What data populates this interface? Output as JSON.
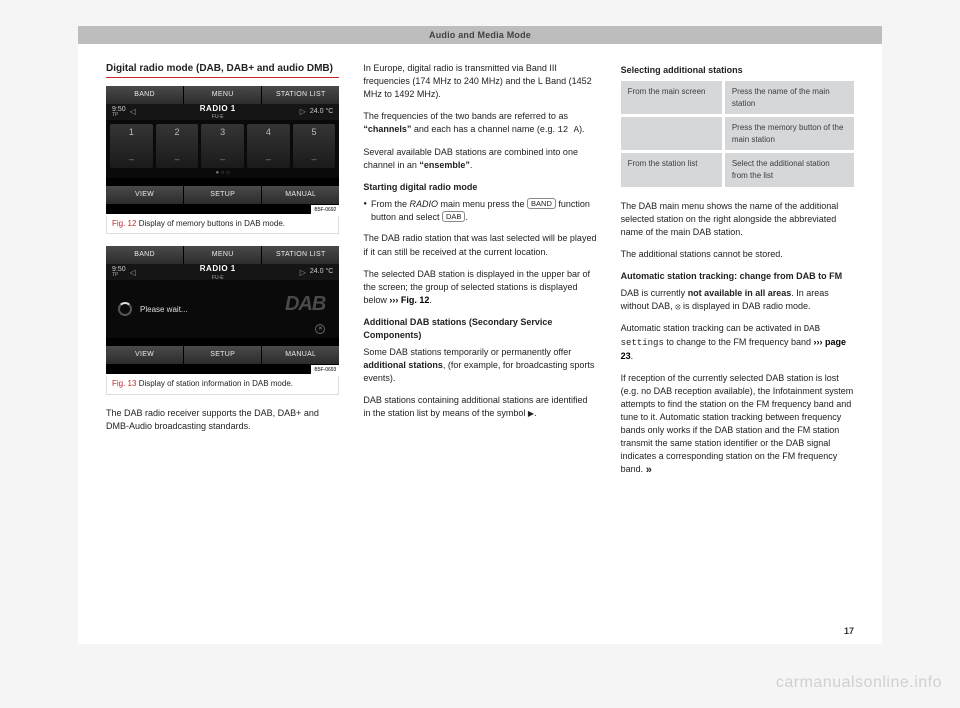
{
  "header": {
    "title": "Audio and Media Mode"
  },
  "col1": {
    "section_title": "Digital radio mode (DAB, DAB+ and audio DMB)",
    "fig12": {
      "top_tabs": [
        "BAND",
        "MENU",
        "STATION LIST"
      ],
      "time": "9:50",
      "tp": "TP",
      "station_main": "RADIO 1",
      "station_sub": "FU-E",
      "temp": "24.0 °C",
      "presets": [
        "1",
        "2",
        "3",
        "4",
        "5"
      ],
      "dots": "● ○ ○",
      "bot_tabs": [
        "VIEW",
        "SETUP",
        "MANUAL"
      ],
      "code": "B5F-0692",
      "caption_fig": "Fig. 12",
      "caption_text": "Display of memory buttons in DAB mode."
    },
    "fig13": {
      "top_tabs": [
        "BAND",
        "MENU",
        "STATION LIST"
      ],
      "time": "9:50",
      "tp": "TP",
      "station_main": "RADIO 1",
      "station_sub": "FU-E",
      "temp": "24.0 °C",
      "loading": "Please wait...",
      "dab": "DAB",
      "bot_tabs": [
        "VIEW",
        "SETUP",
        "MANUAL"
      ],
      "code": "B5F-0693",
      "caption_fig": "Fig. 13",
      "caption_text": "Display of station information in DAB mode."
    },
    "p_bottom": "The DAB radio receiver supports the DAB, DAB+ and DMB-Audio broadcasting standards."
  },
  "col2": {
    "p1": "In Europe, digital radio is transmitted via Band III frequencies (174 MHz to 240 MHz) and the L Band (1452 MHz to 1492 MHz).",
    "p2a": "The frequencies of the two bands are referred to as ",
    "p2b": "“channels”",
    "p2c": " and each has a channel name (e.g. ",
    "p2d": "12 A",
    "p2e": ").",
    "p3a": "Several available DAB stations are combined into one channel in an ",
    "p3b": "“ensemble”",
    "p3c": ".",
    "sub1": "Starting digital radio mode",
    "bul_a": "From the ",
    "bul_b": "RADIO",
    "bul_c": " main menu press the ",
    "btn_band": "BAND",
    "bul_d": " function button and select ",
    "btn_dab": "DAB",
    "bul_e": ".",
    "p4": "The DAB radio station that was last selected will be played if it can still be received at the current location.",
    "p5a": "The selected DAB station is displayed in the upper bar of the screen; the group of selected stations is displayed below ",
    "p5b": "››› Fig. 12",
    "p5c": ".",
    "sub2": "Additional DAB stations (Secondary Service Components)",
    "p6a": "Some DAB stations temporarily or permanently offer ",
    "p6b": "additional stations",
    "p6c": ", (for example, for broadcasting sports events).",
    "p7a": "DAB stations containing additional stations are identified in the station list by means of the symbol ",
    "p7b": "▶",
    "p7c": "."
  },
  "col3": {
    "sub1": "Selecting additional stations",
    "tbl": {
      "r1c1": "From the main screen",
      "r1c2": "Press the name of the main station",
      "r2c1": "",
      "r2c2": "Press the memory button of the main station",
      "r3c1": "From the station list",
      "r3c2": "Select the additional station from the list"
    },
    "p1": "The DAB main menu shows the name of the additional selected station on the right alongside the abbreviated name of the main DAB station.",
    "p2": "The additional stations cannot be stored.",
    "sub2": "Automatic station tracking: change from DAB to FM",
    "p3a": "DAB is currently ",
    "p3b": "not available in all areas",
    "p3c": ". In areas without DAB, ",
    "p3d": " is displayed in DAB radio mode.",
    "p4a": "Automatic station tracking can be activated in ",
    "p4b": "DAB settings",
    "p4c": " to change to the FM frequency band ",
    "p4d": "››› page 23",
    "p4e": ".",
    "p5": "If reception of the currently selected DAB station is lost (e.g. no DAB reception available), the Infotainment system attempts to find the station on the FM frequency band and tune to it. Automatic station tracking between frequency bands only works if the DAB station and the FM station transmit the same station identifier or the DAB signal indicates a corresponding station on the FM frequency band."
  },
  "page_number": "17",
  "watermark": "carmanualsonline.info"
}
